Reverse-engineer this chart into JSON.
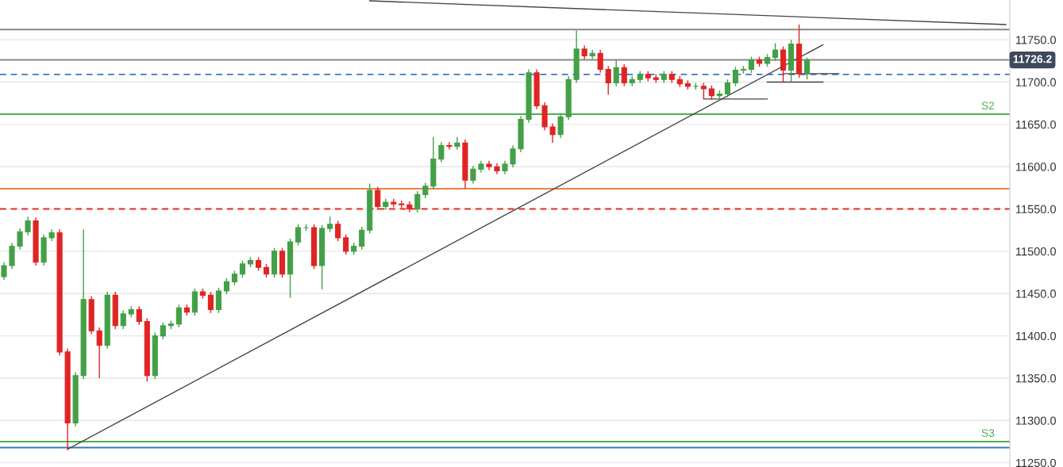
{
  "chart_data": {
    "type": "candlestick",
    "categories": [
      null,
      null,
      null,
      null,
      null,
      null,
      null,
      null,
      null,
      null,
      null,
      null,
      null,
      null,
      null,
      null,
      null,
      null,
      null,
      null,
      null,
      null,
      null,
      null,
      null,
      null,
      null,
      null,
      null,
      null,
      null,
      null,
      null,
      null,
      null,
      null,
      null,
      null,
      null,
      null,
      null,
      null,
      null,
      null,
      null,
      null,
      null,
      null,
      null,
      null,
      null,
      null,
      null,
      null,
      null,
      null,
      null,
      null,
      null,
      null,
      null,
      null,
      null,
      null,
      null,
      null,
      null,
      null,
      null,
      null,
      null,
      null,
      null,
      null,
      null,
      null,
      null,
      null,
      null,
      null,
      null,
      null,
      null,
      null,
      null,
      null,
      null,
      null,
      null,
      null,
      null,
      null,
      null,
      null,
      null,
      null,
      null,
      null,
      null,
      null,
      null,
      null,
      null,
      null,
      null,
      null,
      null,
      null,
      null,
      null,
      null,
      null,
      null,
      null,
      null,
      null,
      null,
      null,
      null,
      null,
      null,
      null,
      null,
      null,
      null,
      null,
      null
    ],
    "colors": [
      "#43a047",
      "#43a047",
      "#43a047",
      "#43a047",
      "#e02424",
      "#43a047",
      "#43a047",
      "#e02424",
      "#e02424",
      "#43a047",
      "#43a047",
      "#e02424",
      "#e02424",
      "#43a047",
      "#e02424",
      "#43a047",
      "#43a047",
      "#e02424",
      "#e02424",
      "#43a047",
      "#43a047",
      "#43a047",
      "#43a047",
      "#e02424",
      "#43a047",
      "#e02424",
      "#e02424",
      "#43a047",
      "#43a047",
      "#43a047",
      "#43a047",
      "#43a047",
      "#e02424",
      "#e02424",
      "#43a047",
      "#e02424",
      "#43a047",
      "#43a047",
      "#43a047",
      "#e02424",
      "#43a047",
      "#43a047",
      "#e02424",
      "#e02424",
      "#43a047",
      "#43a047",
      "#43a047",
      "#e02424",
      "#43a047",
      "#e02424",
      "#e02424",
      "#e02424",
      "#43a047",
      "#43a047",
      "#43a047",
      "#43a047",
      "#e02424",
      "#43a047",
      "#e02424",
      "#43a047",
      "#43a047",
      "#e02424",
      "#e02424",
      "#43a047",
      "#43a047",
      "#43a047",
      "#43a047",
      "#e02424",
      "#e02424",
      "#e02424",
      "#43a047",
      "#43a047",
      "#43a047",
      "#e02424",
      "#43a047",
      "#e02424",
      "#e02424",
      "#43a047",
      "#e02424",
      "#43a047",
      "#43a047",
      "#e02424",
      "#e02424",
      "#43a047",
      "#e02424",
      "#e02424",
      "#e02424",
      "#43a047",
      "#e02424",
      "#e02424",
      "#43a047",
      "#43a047",
      "#43a047",
      "#43a047",
      "#43a047",
      "#e02424",
      "#43a047",
      "#43a047",
      "#e02424",
      "#43a047",
      "#e02424",
      "#43a047",
      null,
      null,
      null,
      null,
      null,
      null,
      null,
      null,
      null,
      null,
      null,
      null,
      null,
      null,
      null,
      null,
      null,
      null,
      null,
      null,
      null,
      null,
      null,
      null,
      null
    ],
    "ohlc": [
      [
        11470,
        11487,
        11466,
        11483
      ],
      [
        11483,
        11510,
        11479,
        11506
      ],
      [
        11506,
        11527,
        11502,
        11523
      ],
      [
        11523,
        11541,
        11519,
        11536
      ],
      [
        11536,
        11540,
        11483,
        11487
      ],
      [
        11487,
        11520,
        11483,
        11516
      ],
      [
        11516,
        11526,
        11512,
        11522
      ],
      [
        11522,
        11526,
        11377,
        11381
      ],
      [
        11381,
        11385,
        11265,
        11297
      ],
      [
        11297,
        11357,
        11293,
        11353
      ],
      [
        11353,
        11526,
        11349,
        11443
      ],
      [
        11443,
        11447,
        11402,
        11406
      ],
      [
        11406,
        11410,
        11350,
        11389
      ],
      [
        11389,
        11452,
        11385,
        11448
      ],
      [
        11448,
        11452,
        11408,
        11412
      ],
      [
        11412,
        11430,
        11408,
        11426
      ],
      [
        11426,
        11435,
        11422,
        11431
      ],
      [
        11431,
        11435,
        11413,
        11417
      ],
      [
        11417,
        11421,
        11346,
        11353
      ],
      [
        11353,
        11404,
        11349,
        11400
      ],
      [
        11400,
        11416,
        11396,
        11412
      ],
      [
        11412,
        11418,
        11408,
        11414
      ],
      [
        11414,
        11437,
        11410,
        11433
      ],
      [
        11433,
        11437,
        11424,
        11428
      ],
      [
        11428,
        11456,
        11424,
        11452
      ],
      [
        11452,
        11456,
        11444,
        11448
      ],
      [
        11448,
        11452,
        11427,
        11431
      ],
      [
        11431,
        11457,
        11427,
        11453
      ],
      [
        11453,
        11468,
        11449,
        11464
      ],
      [
        11464,
        11477,
        11460,
        11473
      ],
      [
        11473,
        11489,
        11469,
        11485
      ],
      [
        11485,
        11493,
        11481,
        11489
      ],
      [
        11489,
        11493,
        11477,
        11481
      ],
      [
        11481,
        11485,
        11469,
        11473
      ],
      [
        11473,
        11504,
        11469,
        11500
      ],
      [
        11500,
        11504,
        11469,
        11473
      ],
      [
        11473,
        11515,
        11445,
        11511
      ],
      [
        11511,
        11532,
        11507,
        11528
      ],
      [
        11528,
        11532,
        11524,
        11528
      ],
      [
        11528,
        11532,
        11479,
        11483
      ],
      [
        11483,
        11531,
        11455,
        11527
      ],
      [
        11527,
        11541,
        11523,
        11532
      ],
      [
        11532,
        11536,
        11512,
        11516
      ],
      [
        11516,
        11520,
        11496,
        11500
      ],
      [
        11500,
        11510,
        11496,
        11506
      ],
      [
        11506,
        11529,
        11502,
        11525
      ],
      [
        11525,
        11580,
        11521,
        11572
      ],
      [
        11572,
        11576,
        11549,
        11553
      ],
      [
        11553,
        11562,
        11549,
        11558
      ],
      [
        11558,
        11562,
        11552,
        11556
      ],
      [
        11556,
        11560,
        11551,
        11555
      ],
      [
        11555,
        11559,
        11546,
        11550
      ],
      [
        11550,
        11571,
        11546,
        11567
      ],
      [
        11567,
        11581,
        11563,
        11577
      ],
      [
        11577,
        11635,
        11573,
        11609
      ],
      [
        11609,
        11629,
        11605,
        11625
      ],
      [
        11625,
        11629,
        11620,
        11624
      ],
      [
        11624,
        11635,
        11620,
        11628
      ],
      [
        11628,
        11632,
        11574,
        11584
      ],
      [
        11584,
        11601,
        11580,
        11597
      ],
      [
        11597,
        11607,
        11593,
        11603
      ],
      [
        11603,
        11607,
        11596,
        11600
      ],
      [
        11600,
        11604,
        11591,
        11595
      ],
      [
        11595,
        11607,
        11591,
        11603
      ],
      [
        11603,
        11625,
        11599,
        11621
      ],
      [
        11621,
        11660,
        11617,
        11656
      ],
      [
        11656,
        11715,
        11652,
        11711
      ],
      [
        11711,
        11715,
        11668,
        11672
      ],
      [
        11672,
        11676,
        11643,
        11647
      ],
      [
        11647,
        11651,
        11628,
        11638
      ],
      [
        11638,
        11663,
        11634,
        11659
      ],
      [
        11659,
        11707,
        11655,
        11703
      ],
      [
        11703,
        11761,
        11699,
        11739
      ],
      [
        11739,
        11743,
        11727,
        11731
      ],
      [
        11731,
        11738,
        11727,
        11734
      ],
      [
        11734,
        11738,
        11711,
        11715
      ],
      [
        11715,
        11719,
        11685,
        11699
      ],
      [
        11699,
        11726,
        11695,
        11717
      ],
      [
        11717,
        11721,
        11695,
        11699
      ],
      [
        11699,
        11707,
        11695,
        11703
      ],
      [
        11703,
        11713,
        11699,
        11709
      ],
      [
        11709,
        11713,
        11701,
        11705
      ],
      [
        11705,
        11709,
        11699,
        11703
      ],
      [
        11703,
        11713,
        11699,
        11709
      ],
      [
        11709,
        11713,
        11699,
        11703
      ],
      [
        11703,
        11707,
        11694,
        11698
      ],
      [
        11698,
        11702,
        11691,
        11695
      ],
      [
        11695,
        11699,
        11691,
        11695
      ],
      [
        11695,
        11699,
        11680,
        11692
      ],
      [
        11692,
        11696,
        11679,
        11684
      ],
      [
        11684,
        11690,
        11679,
        11686
      ],
      [
        11686,
        11703,
        11682,
        11699
      ],
      [
        11699,
        11718,
        11695,
        11714
      ],
      [
        11714,
        11719,
        11710,
        11715
      ],
      [
        11715,
        11730,
        11711,
        11726
      ],
      [
        11726,
        11730,
        11718,
        11722
      ],
      [
        11722,
        11733,
        11718,
        11729
      ],
      [
        11729,
        11746,
        11725,
        11738
      ],
      [
        11738,
        11742,
        11700,
        11714
      ],
      [
        11714,
        11750,
        11700,
        11745
      ],
      [
        11745,
        11768,
        11705,
        11710
      ],
      [
        11710,
        11729,
        11703,
        11726.2
      ],
      null,
      null,
      null,
      null,
      null,
      null,
      null,
      null,
      null,
      null,
      null,
      null,
      null,
      null,
      null,
      null,
      null,
      null,
      null,
      null,
      null,
      null,
      null,
      null,
      null
    ],
    "series": [
      {
        "type": "line",
        "color": "#444444",
        "values": [
          null,
          null,
          null,
          null,
          null,
          null,
          null,
          null,
          11266,
          null,
          null,
          null,
          null,
          null,
          null,
          null,
          null,
          null,
          null,
          null,
          null,
          null,
          null,
          null,
          null,
          null,
          null,
          null,
          null,
          null,
          null,
          null,
          null,
          null,
          null,
          null,
          null,
          null,
          null,
          null,
          null,
          null,
          null,
          null,
          null,
          null,
          null,
          null,
          null,
          null,
          null,
          null,
          null,
          null,
          null,
          null,
          null,
          null,
          null,
          null,
          null,
          null,
          null,
          null,
          null,
          null,
          null,
          null,
          null,
          null,
          null,
          null,
          null,
          null,
          null,
          null,
          null,
          null,
          null,
          null,
          null,
          null,
          null,
          null,
          null,
          null,
          null,
          null,
          null,
          null,
          null,
          null,
          null,
          null,
          null,
          null,
          null,
          null,
          null,
          null,
          null,
          null,
          null,
          11744,
          null,
          null,
          null,
          null,
          null,
          null,
          null,
          null,
          null,
          null,
          null,
          null,
          null,
          null,
          null,
          null,
          null,
          null,
          null,
          null,
          null,
          null,
          null
        ]
      },
      {
        "type": "line",
        "color": "#444444",
        "values": [
          null,
          null,
          null,
          null,
          null,
          null,
          null,
          null,
          null,
          null,
          null,
          null,
          null,
          null,
          null,
          null,
          null,
          null,
          null,
          null,
          null,
          null,
          null,
          null,
          null,
          null,
          null,
          null,
          null,
          null,
          null,
          null,
          null,
          null,
          null,
          null,
          null,
          null,
          null,
          null,
          null,
          null,
          null,
          null,
          null,
          null,
          11796,
          null,
          null,
          null,
          null,
          null,
          null,
          null,
          null,
          null,
          null,
          null,
          null,
          null,
          null,
          null,
          null,
          null,
          null,
          null,
          null,
          null,
          null,
          null,
          null,
          null,
          null,
          null,
          null,
          null,
          null,
          null,
          null,
          null,
          null,
          null,
          null,
          null,
          null,
          null,
          null,
          null,
          null,
          null,
          null,
          null,
          null,
          null,
          null,
          null,
          null,
          null,
          null,
          null,
          null,
          null,
          null,
          null,
          null,
          null,
          null,
          null,
          null,
          null,
          null,
          null,
          null,
          null,
          null,
          null,
          null,
          null,
          null,
          null,
          null,
          null,
          null,
          null,
          null,
          null,
          11768
        ]
      },
      {
        "type": "line",
        "color": "#444444",
        "values": [
          null,
          null,
          null,
          null,
          null,
          null,
          null,
          null,
          null,
          null,
          null,
          null,
          null,
          null,
          null,
          null,
          null,
          null,
          null,
          null,
          null,
          null,
          null,
          null,
          null,
          null,
          null,
          null,
          null,
          null,
          null,
          null,
          null,
          null,
          null,
          null,
          null,
          null,
          null,
          null,
          null,
          null,
          null,
          null,
          null,
          null,
          null,
          null,
          null,
          null,
          null,
          null,
          null,
          null,
          null,
          null,
          null,
          null,
          null,
          null,
          null,
          null,
          null,
          null,
          null,
          null,
          null,
          null,
          null,
          null,
          null,
          null,
          null,
          null,
          null,
          null,
          null,
          null,
          null,
          null,
          null,
          null,
          null,
          null,
          null,
          null,
          null,
          null,
          11680,
          null,
          null,
          null,
          null,
          null,
          null,
          null,
          11680,
          null,
          null,
          null,
          null,
          null,
          null,
          null,
          null,
          null,
          null,
          null,
          null,
          null,
          null,
          null,
          null,
          null,
          null,
          null,
          null,
          null,
          null,
          null,
          null,
          null,
          null,
          null,
          null,
          null,
          null
        ]
      },
      {
        "type": "line",
        "color": "#444444",
        "values": [
          null,
          null,
          null,
          null,
          null,
          null,
          null,
          null,
          null,
          null,
          null,
          null,
          null,
          null,
          null,
          null,
          null,
          null,
          null,
          null,
          null,
          null,
          null,
          null,
          null,
          null,
          null,
          null,
          null,
          null,
          null,
          null,
          null,
          null,
          null,
          null,
          null,
          null,
          null,
          null,
          null,
          null,
          null,
          null,
          null,
          null,
          null,
          null,
          null,
          null,
          null,
          null,
          null,
          null,
          null,
          null,
          null,
          null,
          null,
          null,
          null,
          null,
          null,
          null,
          null,
          null,
          null,
          null,
          null,
          null,
          null,
          null,
          null,
          null,
          null,
          null,
          null,
          null,
          null,
          null,
          null,
          null,
          null,
          null,
          null,
          null,
          null,
          null,
          null,
          null,
          null,
          null,
          null,
          null,
          null,
          null,
          11700,
          null,
          null,
          null,
          null,
          null,
          null,
          11700,
          null,
          null,
          null,
          null,
          null,
          null,
          null,
          null,
          null,
          null,
          null,
          null,
          null,
          null,
          null,
          null,
          null,
          null,
          null,
          null,
          null,
          null,
          null
        ]
      },
      {
        "type": "line",
        "color": "#444444",
        "values": [
          null,
          null,
          null,
          null,
          null,
          null,
          null,
          null,
          null,
          null,
          null,
          null,
          null,
          null,
          null,
          null,
          null,
          null,
          null,
          null,
          null,
          null,
          null,
          null,
          null,
          null,
          null,
          null,
          null,
          null,
          null,
          null,
          null,
          null,
          null,
          null,
          null,
          null,
          null,
          null,
          null,
          null,
          null,
          null,
          null,
          null,
          null,
          null,
          null,
          null,
          null,
          null,
          null,
          null,
          null,
          null,
          null,
          null,
          null,
          null,
          null,
          null,
          null,
          null,
          null,
          null,
          null,
          null,
          null,
          null,
          null,
          null,
          null,
          null,
          null,
          null,
          null,
          null,
          null,
          null,
          null,
          null,
          null,
          null,
          null,
          null,
          null,
          null,
          null,
          null,
          null,
          null,
          null,
          null,
          null,
          null,
          null,
          null,
          11710,
          null,
          null,
          null,
          null,
          null,
          null,
          11710,
          null,
          null,
          null,
          null,
          null,
          null,
          null,
          null,
          null,
          null,
          null,
          null,
          null,
          null,
          null,
          null,
          null,
          null,
          null,
          null,
          null
        ]
      }
    ],
    "ref_lines": [
      {
        "axis": "y",
        "value": 11762,
        "color": "#888888",
        "line_style": "solid"
      },
      {
        "axis": "y",
        "value": 11726.2,
        "label": "11726.2",
        "color": "#888888",
        "line_style": "solid"
      },
      {
        "axis": "y",
        "value": 11709,
        "color": "#3a78c0",
        "line_style": "dashed"
      },
      {
        "axis": "y",
        "value": 11662,
        "label": "S2",
        "color": "#4caf50",
        "line_style": "solid"
      },
      {
        "axis": "y",
        "value": 11574,
        "color": "#f08040",
        "line_style": "solid"
      },
      {
        "axis": "y",
        "value": 11550,
        "color": "#e03020",
        "line_style": "dashed"
      },
      {
        "axis": "y",
        "value": 11275,
        "label": "S3",
        "color": "#4caf50",
        "line_style": "solid"
      },
      {
        "axis": "y",
        "value": 11268,
        "color": "#3a78c0",
        "line_style": "solid"
      }
    ],
    "ylim": [
      11245,
      11797
    ],
    "yticks": [
      {
        "value": 11250,
        "label": "11250.0"
      },
      {
        "value": 11300,
        "label": "11300.0"
      },
      {
        "value": 11350,
        "label": "11350.0"
      },
      {
        "value": 11400,
        "label": "11400.0"
      },
      {
        "value": 11450,
        "label": "11450.0"
      },
      {
        "value": 11500,
        "label": "11500.0"
      },
      {
        "value": 11550,
        "label": "11550.0"
      },
      {
        "value": 11600,
        "label": "11600.0"
      },
      {
        "value": 11650,
        "label": "11650.0"
      },
      {
        "value": 11700,
        "label": "11700.0"
      },
      {
        "value": 11750,
        "label": "11750.0"
      }
    ],
    "tick_labels": "y",
    "grid": "y"
  }
}
